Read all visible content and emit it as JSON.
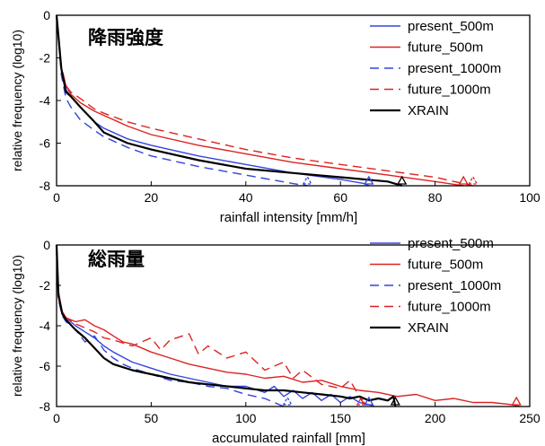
{
  "chart_data": [
    {
      "type": "line",
      "title": "降雨強度",
      "xlabel": "rainfall intensity [mm/h]",
      "ylabel": "relative frequency (log10)",
      "xlim": [
        0,
        100
      ],
      "ylim": [
        -8,
        0
      ],
      "xticks": [
        0,
        20,
        40,
        60,
        80,
        100
      ],
      "yticks": [
        0,
        -2,
        -4,
        -6,
        -8
      ],
      "grid": false,
      "legend_position": "top-right",
      "series": [
        {
          "name": "present_500m",
          "color": "#3344dd",
          "dash": "solid",
          "x": [
            0,
            1,
            2,
            3,
            5,
            8,
            10,
            15,
            20,
            30,
            40,
            50,
            60,
            65,
            66
          ],
          "y": [
            0,
            -2.5,
            -3.5,
            -3.8,
            -4.3,
            -5.0,
            -5.3,
            -5.8,
            -6.1,
            -6.6,
            -7.0,
            -7.4,
            -7.7,
            -7.9,
            -8.0
          ],
          "max_marker": 66
        },
        {
          "name": "future_500m",
          "color": "#dd2222",
          "dash": "solid",
          "x": [
            0,
            1,
            2,
            3,
            5,
            8,
            10,
            15,
            20,
            30,
            40,
            50,
            60,
            70,
            80,
            86
          ],
          "y": [
            0,
            -2.5,
            -3.3,
            -3.7,
            -4.1,
            -4.5,
            -4.7,
            -5.2,
            -5.6,
            -6.1,
            -6.5,
            -6.9,
            -7.2,
            -7.5,
            -7.8,
            -8.0
          ],
          "max_marker": 86
        },
        {
          "name": "present_1000m",
          "color": "#3344dd",
          "dash": "dashed",
          "x": [
            0,
            1,
            2,
            3,
            5,
            8,
            10,
            15,
            20,
            30,
            40,
            50,
            53
          ],
          "y": [
            0,
            -2.8,
            -3.9,
            -4.3,
            -4.9,
            -5.4,
            -5.7,
            -6.2,
            -6.6,
            -7.1,
            -7.5,
            -7.9,
            -8.0
          ],
          "max_marker": 53
        },
        {
          "name": "future_1000m",
          "color": "#dd2222",
          "dash": "dashed",
          "x": [
            0,
            1,
            2,
            3,
            5,
            8,
            10,
            15,
            20,
            30,
            40,
            50,
            60,
            70,
            80,
            88
          ],
          "y": [
            0,
            -2.4,
            -3.3,
            -3.6,
            -3.9,
            -4.4,
            -4.6,
            -5.0,
            -5.3,
            -5.8,
            -6.3,
            -6.7,
            -7.0,
            -7.3,
            -7.6,
            -8.0
          ],
          "max_marker": 88
        },
        {
          "name": "XRAIN",
          "color": "#000000",
          "dash": "solid",
          "x": [
            0,
            1,
            2,
            3,
            5,
            8,
            10,
            15,
            20,
            30,
            40,
            50,
            60,
            70,
            73
          ],
          "y": [
            0,
            -2.5,
            -3.6,
            -3.8,
            -4.3,
            -5.0,
            -5.5,
            -6.0,
            -6.3,
            -6.8,
            -7.2,
            -7.4,
            -7.6,
            -7.8,
            -8.0
          ],
          "max_marker": 73
        }
      ]
    },
    {
      "type": "line",
      "title": "総雨量",
      "xlabel": "accumulated rainfall [mm]",
      "ylabel": "relative frequency (log10)",
      "xlim": [
        0,
        250
      ],
      "ylim": [
        -8,
        0
      ],
      "xticks": [
        0,
        50,
        100,
        150,
        200,
        250
      ],
      "yticks": [
        0,
        -2,
        -4,
        -6,
        -8
      ],
      "grid": false,
      "legend_position": "top-right",
      "series": [
        {
          "name": "present_500m",
          "color": "#3344dd",
          "dash": "solid",
          "x": [
            0,
            1,
            3,
            5,
            10,
            15,
            20,
            25,
            30,
            40,
            50,
            60,
            70,
            80,
            90,
            100,
            110,
            115,
            120,
            125,
            130,
            135,
            140,
            145,
            150,
            155,
            160,
            165,
            168
          ],
          "y": [
            0,
            -2.5,
            -3.3,
            -3.6,
            -4.0,
            -4.3,
            -4.6,
            -5.0,
            -5.3,
            -5.8,
            -6.1,
            -6.4,
            -6.6,
            -6.8,
            -7.0,
            -7.0,
            -7.3,
            -7.0,
            -7.5,
            -7.2,
            -7.6,
            -7.3,
            -7.7,
            -7.4,
            -7.8,
            -7.5,
            -7.8,
            -7.9,
            -8.0
          ],
          "max_marker": 165
        },
        {
          "name": "future_500m",
          "color": "#dd2222",
          "dash": "solid",
          "x": [
            0,
            1,
            3,
            5,
            10,
            15,
            20,
            25,
            30,
            35,
            40,
            50,
            60,
            70,
            80,
            90,
            100,
            110,
            120,
            130,
            140,
            150,
            160,
            170,
            180,
            190,
            200,
            210,
            220,
            230,
            240,
            245
          ],
          "y": [
            0,
            -2.3,
            -3.3,
            -3.6,
            -3.8,
            -3.7,
            -4.0,
            -4.2,
            -4.5,
            -4.8,
            -4.9,
            -5.3,
            -5.6,
            -5.9,
            -6.1,
            -6.3,
            -6.4,
            -6.6,
            -6.5,
            -6.8,
            -6.7,
            -7.0,
            -7.2,
            -7.3,
            -7.5,
            -7.4,
            -7.7,
            -7.6,
            -7.8,
            -7.8,
            -7.9,
            -8.0
          ],
          "max_marker": 243
        },
        {
          "name": "present_1000m",
          "color": "#3344dd",
          "dash": "dashed",
          "x": [
            0,
            1,
            3,
            5,
            10,
            15,
            20,
            25,
            30,
            35,
            40,
            50,
            60,
            70,
            80,
            90,
            100,
            110,
            115,
            120
          ],
          "y": [
            0,
            -2.7,
            -3.5,
            -3.8,
            -4.2,
            -4.8,
            -4.5,
            -5.2,
            -5.6,
            -5.9,
            -6.1,
            -6.4,
            -6.7,
            -6.8,
            -7.0,
            -7.1,
            -7.4,
            -7.6,
            -7.8,
            -8.0
          ],
          "max_marker": 122
        },
        {
          "name": "future_1000m",
          "color": "#dd2222",
          "dash": "dashed",
          "x": [
            0,
            1,
            3,
            5,
            10,
            15,
            20,
            25,
            30,
            40,
            50,
            55,
            60,
            70,
            75,
            80,
            90,
            100,
            110,
            120,
            125,
            130,
            140,
            150,
            155,
            160,
            163
          ],
          "y": [
            0,
            -2.4,
            -3.3,
            -3.6,
            -3.9,
            -4.1,
            -4.3,
            -4.6,
            -4.7,
            -5.0,
            -4.6,
            -5.2,
            -4.7,
            -4.4,
            -5.4,
            -5.0,
            -5.6,
            -5.3,
            -6.2,
            -5.8,
            -6.6,
            -6.2,
            -6.9,
            -7.1,
            -6.7,
            -7.5,
            -8.0
          ],
          "max_marker": 161
        },
        {
          "name": "XRAIN",
          "color": "#000000",
          "dash": "solid",
          "x": [
            0,
            1,
            3,
            5,
            10,
            15,
            20,
            25,
            30,
            40,
            50,
            60,
            70,
            80,
            90,
            100,
            110,
            120,
            130,
            140,
            150,
            155,
            160,
            165,
            170,
            175,
            178,
            179
          ],
          "y": [
            0,
            -2.5,
            -3.4,
            -3.7,
            -4.2,
            -4.6,
            -5.1,
            -5.6,
            -5.9,
            -6.2,
            -6.4,
            -6.6,
            -6.8,
            -6.9,
            -7.0,
            -7.1,
            -7.2,
            -7.2,
            -7.3,
            -7.4,
            -7.5,
            -7.6,
            -7.5,
            -7.7,
            -7.6,
            -7.7,
            -7.5,
            -8.0
          ],
          "max_marker": 179
        }
      ]
    }
  ]
}
